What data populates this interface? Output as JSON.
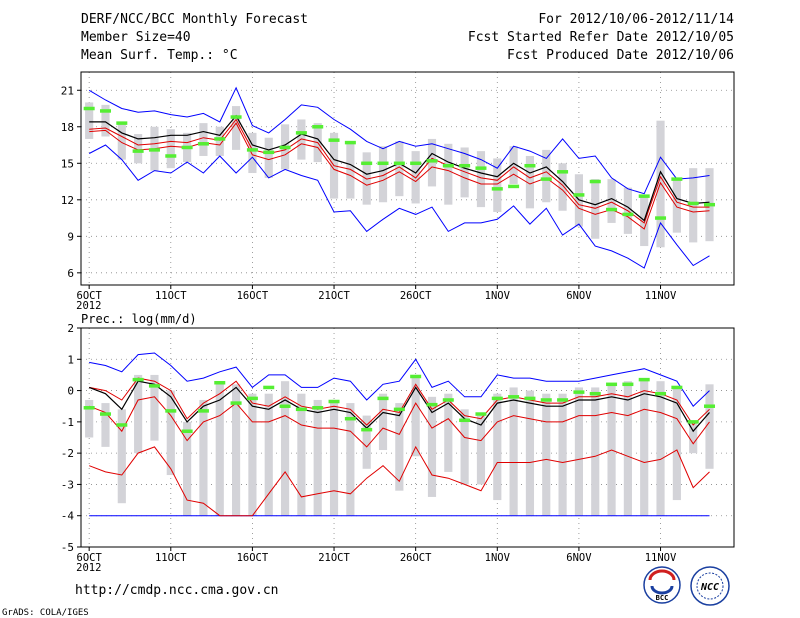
{
  "header": {
    "title": "DERF/NCC/BCC Monthly Forecast",
    "member_size": "Member Size=40",
    "variable": "Mean Surf. Temp.: °C",
    "period": "For 2012/10/06-2012/11/14",
    "refer_date": "Fcst Started Refer Date 2012/10/05",
    "produced_date": "Fcst Produced Date 2012/10/06"
  },
  "footer": {
    "url": "http://cmdp.ncc.cma.gov.cn",
    "credit": "GrADS: COLA/IGES",
    "logo_bcc": "BCC",
    "logo_ncc": "NCC"
  },
  "colors": {
    "max_line": "#0000ff",
    "pct_line": "#e00000",
    "mean_line": "#000000",
    "box": "#d3d3d8",
    "obs": "#55ee33",
    "grid": "#888888"
  },
  "chart_data": [
    {
      "type": "box-line",
      "title": "Mean Surf. Temp.: °C",
      "ylim": [
        5,
        22.5
      ],
      "yticks": [
        6,
        9,
        12,
        15,
        18,
        21
      ],
      "xlim": [
        5.5,
        45.5
      ],
      "xticks": [
        {
          "x": 6,
          "label": "6OCT"
        },
        {
          "x": 11,
          "label": "11OCT"
        },
        {
          "x": 16,
          "label": "16OCT"
        },
        {
          "x": 21,
          "label": "21OCT"
        },
        {
          "x": 26,
          "label": "26OCT"
        },
        {
          "x": 31,
          "label": "1NOV"
        },
        {
          "x": 36,
          "label": "6NOV"
        },
        {
          "x": 41,
          "label": "11NOV"
        }
      ],
      "year_label": "2012",
      "days": [
        6,
        7,
        8,
        9,
        10,
        11,
        12,
        13,
        14,
        15,
        16,
        17,
        18,
        19,
        20,
        21,
        22,
        23,
        24,
        25,
        26,
        27,
        28,
        29,
        30,
        31,
        32,
        33,
        34,
        35,
        36,
        37,
        38,
        39,
        40,
        41,
        42,
        43,
        44
      ],
      "max": [
        21.0,
        20.2,
        19.5,
        19.2,
        19.3,
        19.0,
        18.8,
        19.1,
        18.4,
        21.2,
        18.1,
        17.5,
        18.6,
        19.8,
        19.6,
        18.6,
        17.8,
        16.8,
        16.2,
        16.8,
        16.4,
        16.6,
        16.2,
        15.8,
        15.3,
        14.6,
        16.4,
        16.0,
        15.4,
        17.0,
        15.4,
        15.6,
        13.8,
        12.9,
        12.5,
        15.5,
        13.7,
        13.8,
        14.0
      ],
      "upper": [
        17.8,
        17.9,
        17.2,
        16.5,
        16.6,
        16.8,
        16.7,
        17.1,
        16.9,
        18.6,
        16.1,
        15.8,
        16.1,
        17.0,
        16.7,
        14.8,
        14.5,
        13.7,
        14.0,
        14.7,
        13.8,
        15.4,
        14.8,
        14.3,
        13.8,
        13.6,
        14.7,
        13.8,
        14.3,
        13.2,
        11.6,
        11.3,
        11.8,
        11.1,
        10.1,
        13.9,
        11.8,
        11.4,
        11.4
      ],
      "mean": [
        18.4,
        18.4,
        17.5,
        17.0,
        17.1,
        17.3,
        17.3,
        17.6,
        17.3,
        18.9,
        16.5,
        16.1,
        16.5,
        17.4,
        17.0,
        15.3,
        14.9,
        14.1,
        14.4,
        15.0,
        14.2,
        15.8,
        15.1,
        14.6,
        14.2,
        13.9,
        15.0,
        14.2,
        14.7,
        13.5,
        12.0,
        11.6,
        12.1,
        11.4,
        10.3,
        14.3,
        12.1,
        11.7,
        11.8
      ],
      "lower": [
        17.6,
        17.7,
        16.7,
        16.1,
        16.2,
        16.4,
        16.3,
        16.7,
        16.5,
        18.3,
        15.7,
        15.3,
        15.7,
        16.6,
        16.3,
        14.5,
        14.0,
        13.2,
        13.6,
        14.3,
        13.5,
        14.7,
        14.4,
        13.8,
        13.3,
        13.3,
        14.1,
        13.3,
        13.8,
        12.8,
        11.3,
        10.8,
        11.2,
        10.6,
        9.6,
        13.4,
        11.4,
        11.0,
        11.1
      ],
      "min": [
        15.8,
        16.5,
        15.3,
        13.6,
        14.4,
        14.2,
        15.1,
        14.2,
        15.6,
        14.2,
        15.5,
        13.8,
        14.5,
        14.0,
        13.6,
        11.0,
        11.1,
        9.4,
        10.4,
        11.3,
        10.8,
        11.4,
        9.4,
        10.1,
        10.1,
        10.4,
        11.5,
        10.0,
        11.3,
        9.1,
        10.0,
        8.2,
        7.8,
        7.2,
        6.4,
        10.1,
        8.3,
        6.6,
        7.4
      ],
      "box_high": [
        20.0,
        19.8,
        18.4,
        17.4,
        18.0,
        17.8,
        17.5,
        18.3,
        18.0,
        19.7,
        17.5,
        17.1,
        18.2,
        18.6,
        18.3,
        17.5,
        16.6,
        15.9,
        16.4,
        16.8,
        16.0,
        17.0,
        16.6,
        16.3,
        16.0,
        15.4,
        16.4,
        15.6,
        16.1,
        15.0,
        14.1,
        13.7,
        13.7,
        13.0,
        12.4,
        18.5,
        13.8,
        14.6,
        14.6
      ],
      "box_low": [
        17.0,
        17.2,
        15.3,
        15.0,
        14.4,
        14.6,
        15.1,
        15.6,
        15.6,
        16.1,
        14.2,
        13.8,
        14.5,
        15.3,
        15.1,
        12.1,
        12.1,
        11.6,
        11.8,
        12.3,
        11.7,
        13.1,
        11.6,
        12.2,
        11.4,
        11.0,
        13.3,
        11.3,
        11.8,
        11.1,
        9.8,
        8.8,
        10.1,
        9.2,
        8.2,
        8.1,
        9.3,
        8.5,
        8.6
      ],
      "obs": [
        19.5,
        19.3,
        18.3,
        16.0,
        16.1,
        15.6,
        16.3,
        16.6,
        17.0,
        18.8,
        16.1,
        15.9,
        16.3,
        17.5,
        18.0,
        16.9,
        16.7,
        15.0,
        15.0,
        15.0,
        15.0,
        15.2,
        14.8,
        14.8,
        14.6,
        12.9,
        13.1,
        14.8,
        13.7,
        14.3,
        12.4,
        13.5,
        11.2,
        10.8,
        12.3,
        10.5,
        13.7,
        11.7,
        11.6
      ]
    },
    {
      "type": "box-line",
      "title": "Prec.: log(mm/d)",
      "ylim": [
        -5,
        2
      ],
      "yticks": [
        -5,
        -4,
        -3,
        -2,
        -1,
        0,
        1,
        2
      ],
      "xlim": [
        5.5,
        45.5
      ],
      "xticks": [
        {
          "x": 6,
          "label": "6OCT"
        },
        {
          "x": 11,
          "label": "11OCT"
        },
        {
          "x": 16,
          "label": "16OCT"
        },
        {
          "x": 21,
          "label": "21OCT"
        },
        {
          "x": 26,
          "label": "26OCT"
        },
        {
          "x": 31,
          "label": "1NOV"
        },
        {
          "x": 36,
          "label": "6NOV"
        },
        {
          "x": 41,
          "label": "11NOV"
        }
      ],
      "year_label": "2012",
      "days": [
        6,
        7,
        8,
        9,
        10,
        11,
        12,
        13,
        14,
        15,
        16,
        17,
        18,
        19,
        20,
        21,
        22,
        23,
        24,
        25,
        26,
        27,
        28,
        29,
        30,
        31,
        32,
        33,
        34,
        35,
        36,
        37,
        38,
        39,
        40,
        41,
        42,
        43,
        44
      ],
      "max": [
        0.9,
        0.8,
        0.6,
        1.15,
        1.2,
        0.8,
        0.3,
        0.4,
        0.6,
        0.75,
        0.1,
        0.5,
        0.5,
        0.1,
        0.1,
        0.4,
        0.3,
        -0.3,
        0.2,
        0.3,
        1.0,
        0.1,
        0.3,
        -0.2,
        -0.2,
        0.5,
        0.4,
        0.4,
        0.3,
        0.3,
        0.3,
        0.4,
        0.5,
        0.6,
        0.7,
        0.5,
        0.3,
        -0.5,
        0.0
      ],
      "upper": [
        0.1,
        0.0,
        -0.3,
        0.4,
        0.3,
        0.0,
        -0.9,
        -0.4,
        -0.1,
        0.3,
        -0.4,
        -0.5,
        -0.2,
        -0.5,
        -0.6,
        -0.5,
        -0.6,
        -1.1,
        -0.6,
        -0.7,
        0.2,
        -0.6,
        -0.3,
        -0.8,
        -0.9,
        -0.3,
        -0.2,
        -0.3,
        -0.4,
        -0.4,
        -0.2,
        -0.2,
        -0.1,
        -0.2,
        0.0,
        -0.1,
        -0.3,
        -1.1,
        -0.6
      ],
      "mean": [
        0.1,
        -0.1,
        -0.6,
        0.3,
        0.2,
        -0.2,
        -1.0,
        -0.5,
        -0.3,
        0.1,
        -0.5,
        -0.6,
        -0.3,
        -0.6,
        -0.7,
        -0.6,
        -0.7,
        -1.2,
        -0.7,
        -0.8,
        0.1,
        -0.7,
        -0.4,
        -0.9,
        -1.1,
        -0.4,
        -0.3,
        -0.4,
        -0.5,
        -0.5,
        -0.3,
        -0.3,
        -0.2,
        -0.3,
        -0.1,
        -0.2,
        -0.4,
        -1.3,
        -0.7
      ],
      "lower": [
        -0.5,
        -0.7,
        -1.3,
        -0.3,
        -0.2,
        -0.8,
        -1.6,
        -1.0,
        -0.8,
        -0.4,
        -1.0,
        -1.0,
        -0.8,
        -1.1,
        -1.2,
        -1.2,
        -1.3,
        -1.8,
        -1.2,
        -1.4,
        -0.4,
        -1.2,
        -0.9,
        -1.5,
        -1.6,
        -1.0,
        -0.8,
        -0.9,
        -1.0,
        -1.0,
        -0.8,
        -0.8,
        -0.7,
        -0.8,
        -0.6,
        -0.7,
        -0.9,
        -1.7,
        -1.0
      ],
      "min": [
        -2.4,
        -2.6,
        -2.7,
        -2.0,
        -1.8,
        -2.5,
        -3.5,
        -3.6,
        -4.0,
        -4.0,
        -4.0,
        -3.3,
        -2.6,
        -3.4,
        -3.3,
        -3.2,
        -3.3,
        -2.8,
        -2.4,
        -2.9,
        -1.8,
        -2.7,
        -2.8,
        -3.0,
        -3.2,
        -2.3,
        -2.3,
        -2.3,
        -2.2,
        -2.3,
        -2.2,
        -2.1,
        -1.9,
        -2.1,
        -2.3,
        -2.2,
        -1.9,
        -3.1,
        -2.6
      ],
      "floor": -4.0,
      "box_high": [
        -0.3,
        -0.4,
        -0.6,
        0.5,
        0.5,
        0.0,
        -1.0,
        -0.3,
        0.2,
        0.2,
        -0.1,
        -0.1,
        0.3,
        -0.1,
        -0.3,
        -0.3,
        -0.4,
        -0.8,
        -0.1,
        -0.4,
        0.5,
        -0.2,
        -0.1,
        -0.6,
        -0.8,
        -0.1,
        0.1,
        0.0,
        -0.1,
        -0.1,
        0.1,
        0.1,
        0.2,
        0.3,
        0.4,
        0.3,
        0.1,
        -1.0,
        0.2
      ],
      "box_low": [
        -1.5,
        -1.8,
        -3.6,
        -2.0,
        -1.6,
        -2.7,
        -4.0,
        -4.0,
        -4.0,
        -4.0,
        -4.0,
        -4.0,
        -4.0,
        -4.0,
        -4.0,
        -4.0,
        -4.0,
        -2.5,
        -1.9,
        -3.2,
        -2.1,
        -3.4,
        -2.6,
        -3.0,
        -3.0,
        -3.5,
        -4.0,
        -4.0,
        -4.0,
        -4.0,
        -4.0,
        -4.0,
        -4.0,
        -4.0,
        -4.0,
        -4.0,
        -3.5,
        -2.0,
        -2.5
      ],
      "obs": [
        -0.55,
        -0.75,
        -1.1,
        0.35,
        0.15,
        -0.65,
        -1.3,
        -0.65,
        0.25,
        -0.4,
        -0.25,
        0.1,
        -0.5,
        -0.6,
        -0.55,
        -0.35,
        -0.9,
        -1.25,
        -0.25,
        -0.6,
        0.45,
        -0.45,
        -0.3,
        -0.95,
        -0.75,
        -0.25,
        -0.2,
        -0.25,
        -0.3,
        -0.3,
        -0.05,
        -0.1,
        0.2,
        0.2,
        0.35,
        -0.1,
        0.1,
        -1.0,
        -0.5
      ]
    }
  ]
}
